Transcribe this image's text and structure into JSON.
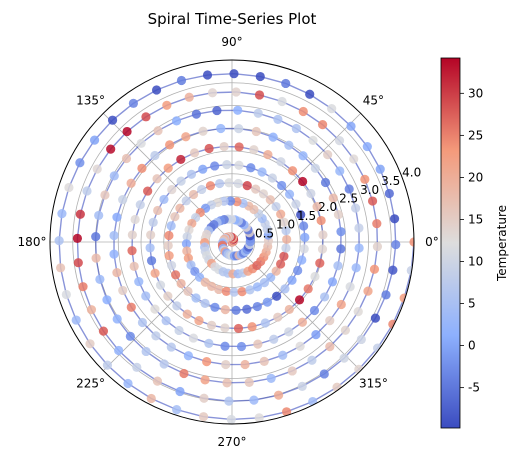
{
  "chart_data": {
    "type": "scatter",
    "projection": "polar",
    "title": "Spiral Time-Series Plot",
    "angle_tick_labels": [
      "0°",
      "45°",
      "90°",
      "135°",
      "180°",
      "225°",
      "270°",
      "315°"
    ],
    "angle_ticks_deg": [
      0,
      45,
      90,
      135,
      180,
      225,
      270,
      315
    ],
    "radial_tick_labels": [
      "0.5",
      "1.0",
      "1.5",
      "2.0",
      "2.5",
      "3.0",
      "3.5",
      "4.0"
    ],
    "radial_ticks": [
      0.5,
      1.0,
      1.5,
      2.0,
      2.5,
      3.0,
      3.5,
      4.0
    ],
    "rlim": [
      0,
      4.0
    ],
    "spiral": {
      "turns": 10,
      "angle_start_deg": 0,
      "r_start": 0.0,
      "r_end": 4.0,
      "points": 400,
      "line_color": "#3b4cc0"
    },
    "colorbar": {
      "label": "Temperature",
      "colormap": "coolwarm",
      "vmin": -9.8,
      "vmax": 34.2,
      "tick_labels": [
        "-5",
        "0",
        "5",
        "10",
        "15",
        "20",
        "25",
        "30"
      ],
      "ticks": [
        -5,
        0,
        5,
        10,
        15,
        20,
        25,
        30
      ]
    },
    "grid": true,
    "legend": "none"
  }
}
